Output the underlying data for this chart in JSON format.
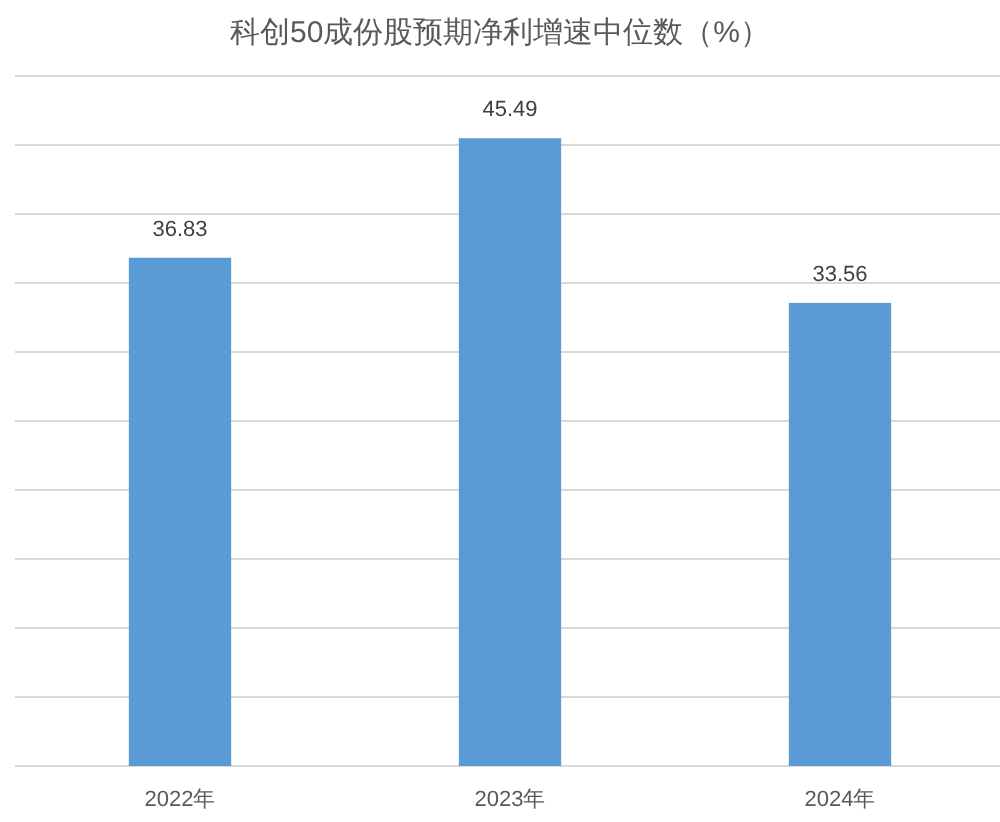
{
  "chart_data": {
    "type": "bar",
    "title": "科创50成份股预期净利增速中位数（%）",
    "categories": [
      "2022年",
      "2023年",
      "2024年"
    ],
    "values": [
      36.83,
      45.49,
      33.56
    ],
    "color": "#5b9bd5",
    "ylim": [
      0,
      50
    ],
    "yticks": [
      {
        "value": 0,
        "label": null
      },
      {
        "value": 5,
        "label": null
      },
      {
        "value": 10,
        "label": null
      },
      {
        "value": 15,
        "label": null
      },
      {
        "value": 20,
        "label": null
      },
      {
        "value": 25,
        "label": null
      },
      {
        "value": 30,
        "label": null
      },
      {
        "value": 35,
        "label": null
      },
      {
        "value": 40,
        "label": null
      },
      {
        "value": 45,
        "label": null
      },
      {
        "value": 50,
        "label": null
      }
    ],
    "grid": "y",
    "tick_labels": "x",
    "data_labels": true
  }
}
